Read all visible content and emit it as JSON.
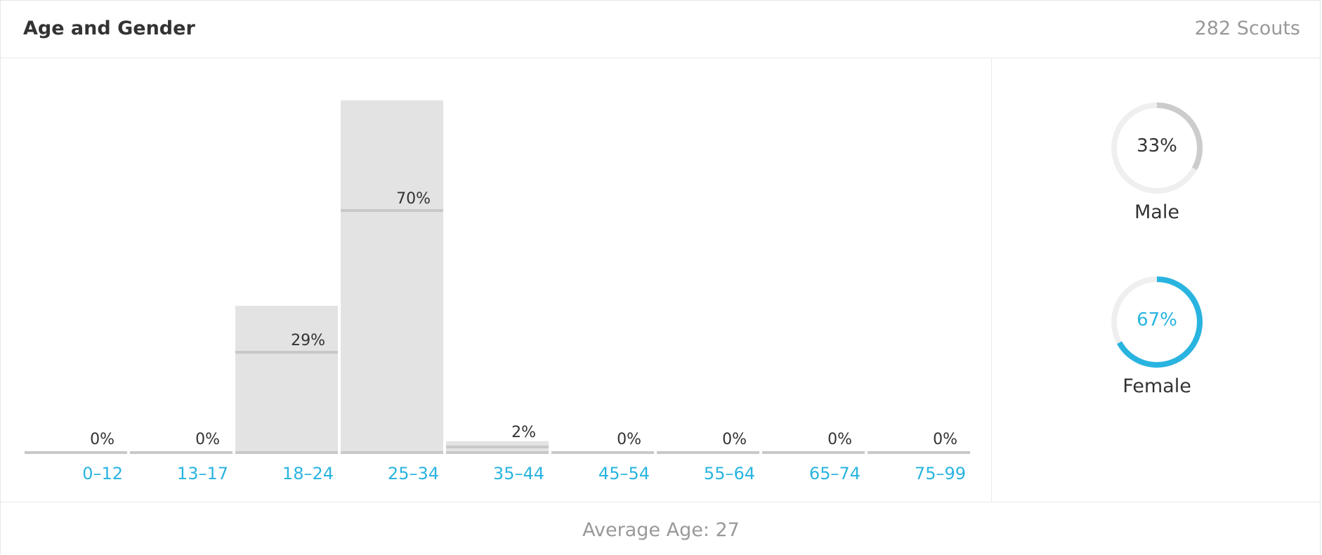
{
  "header": {
    "title": "Age and Gender",
    "count": "282 Scouts"
  },
  "footer": {
    "average_age": "Average Age: 27"
  },
  "colors": {
    "bar": "#e3e3e3",
    "bar_line": "#c8c8c8",
    "link": "#29b4e0",
    "text": "#333333",
    "muted": "#999999",
    "ring_track": "#efefef",
    "male_ring": "#cccccc",
    "female_ring": "#29b4e0"
  },
  "chart_data": {
    "type": "bar",
    "categories": [
      "0–12",
      "13–17",
      "18–24",
      "25–34",
      "35–44",
      "45–54",
      "55–64",
      "65–74",
      "75–99"
    ],
    "values": [
      0,
      0,
      29,
      70,
      2,
      0,
      0,
      0,
      0
    ],
    "value_labels": [
      "0%",
      "0%",
      "29%",
      "70%",
      "2%",
      "0%",
      "0%",
      "0%",
      "0%"
    ],
    "ylim": [
      0,
      100
    ],
    "grid": false,
    "title": "",
    "xlabel": "",
    "ylabel": ""
  },
  "gender": [
    {
      "label": "Male",
      "percent": 33,
      "percent_label": "33%"
    },
    {
      "label": "Female",
      "percent": 67,
      "percent_label": "67%"
    }
  ]
}
